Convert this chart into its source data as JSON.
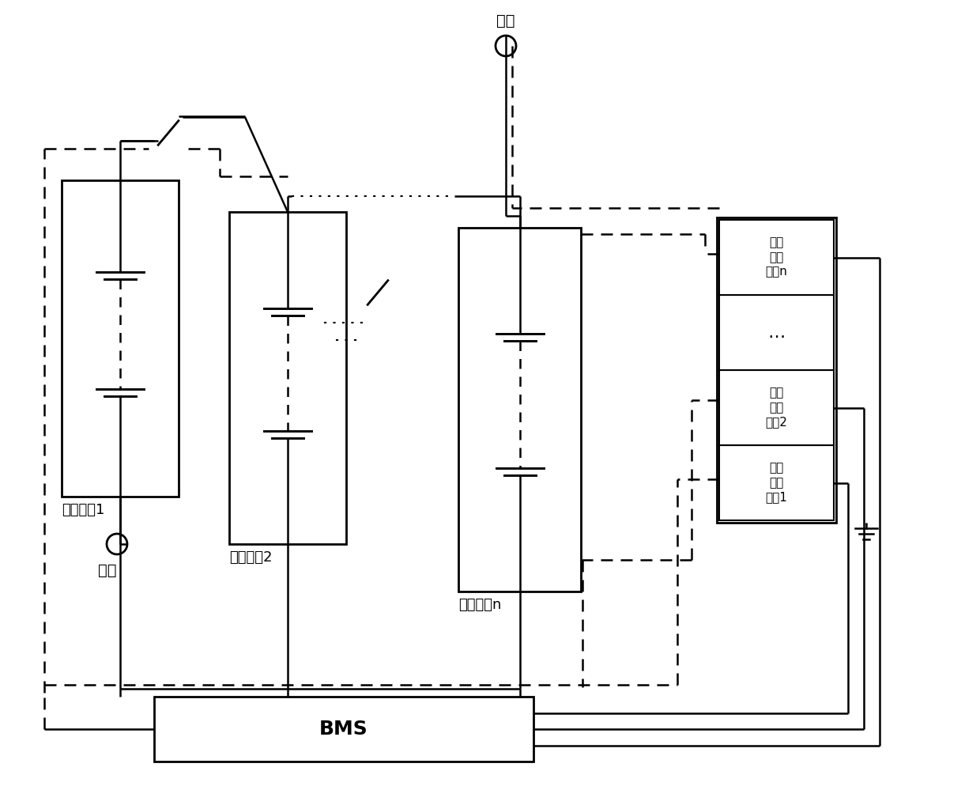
{
  "bg_color": "#ffffff",
  "lc": "#000000",
  "label_batt1": "电池模块1",
  "label_batt2": "电池模块2",
  "label_battn": "电池模块n",
  "label_ins1": "络缘\n检测\n模块1",
  "label_ins2": "络缘\n检测\n模块2",
  "label_insn": "络缘\n检测\n模块n",
  "label_dots_vert": "⋯",
  "label_bms": "BMS",
  "label_pos": "正极",
  "label_neg": "负极",
  "label_horiz_dots": "· · · · · ·",
  "main_lw": 1.8,
  "dash_lw": 1.8,
  "font_size_label": 13,
  "font_size_box": 11,
  "font_size_bms": 18
}
